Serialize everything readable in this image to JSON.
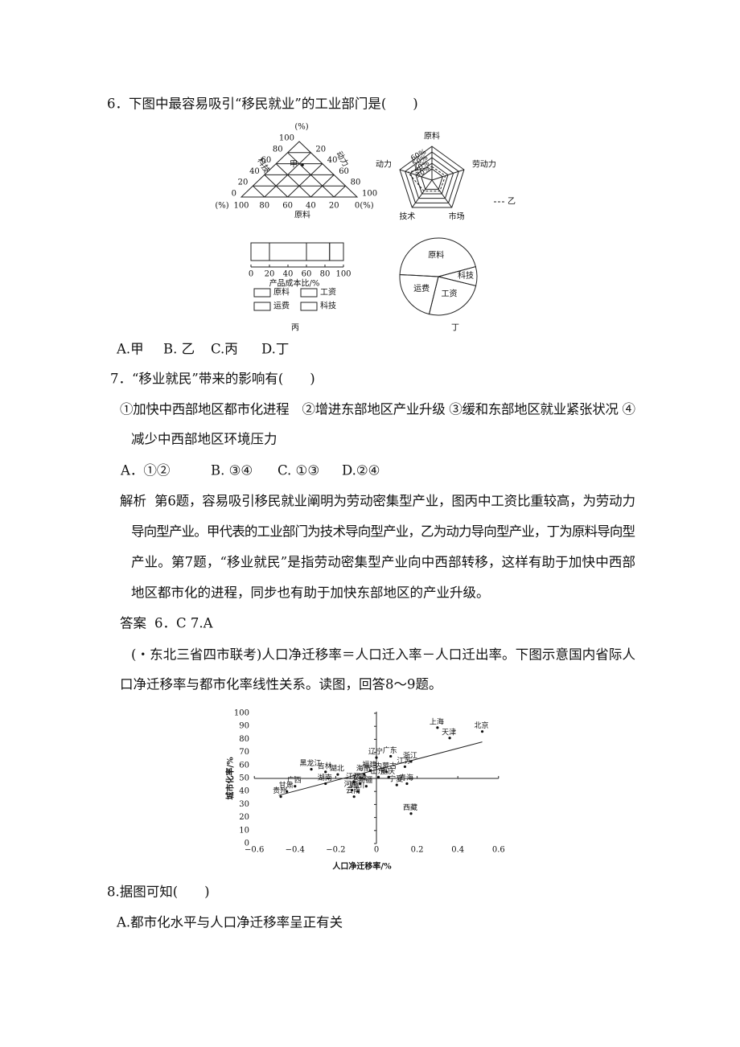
{
  "q6": {
    "stem": "6．下图中最容易吸引“移民就业”的工业部门是(　　)",
    "options": [
      "A.甲",
      "B. 乙",
      "C.丙",
      "D.丁"
    ]
  },
  "figures": {
    "triangle": {
      "unit": "(%)",
      "left_label": "科技",
      "right_label": "动力",
      "bottom_label": "原料",
      "point": "甲",
      "left_ticks": [
        "100",
        "80",
        "60",
        "40",
        "20",
        "0"
      ],
      "right_ticks": [
        "20",
        "40",
        "60",
        "80",
        "100"
      ],
      "bottom_ticks": [
        "100",
        "80",
        "60",
        "40",
        "20",
        "0"
      ]
    },
    "radar": {
      "axes": [
        "原料",
        "劳动力",
        "市场",
        "技术",
        "动力"
      ],
      "rings": [
        "60%",
        "50%",
        "40%",
        "30%"
      ],
      "legend": "乙"
    },
    "bar": {
      "caption": "丙",
      "axis_label": "产品成本比/%",
      "ticks": [
        0,
        20,
        40,
        60,
        80,
        100
      ],
      "segments": [
        {
          "name": "原料",
          "value": 20
        },
        {
          "name": "工资",
          "value": 40
        },
        {
          "name": "运费",
          "value": 25
        },
        {
          "name": "科技",
          "value": 15
        }
      ]
    },
    "pie": {
      "caption": "丁",
      "segments": [
        {
          "name": "原料",
          "value": 45
        },
        {
          "name": "科技",
          "value": 8
        },
        {
          "name": "工资",
          "value": 25
        },
        {
          "name": "运费",
          "value": 22
        }
      ]
    }
  },
  "q7": {
    "stem": "7．“移业就民”带来的影响有(　　)",
    "statements": [
      "①加快中西部地区都市化进程　②增进东部地区产业升级 ③缓和东部地区就业紧张状况 ④",
      "减少中西部地区环境压力"
    ],
    "options": [
      "A．①②",
      "B. ③④",
      "C. ①③",
      "D.②④"
    ]
  },
  "analysis": {
    "label": "解析",
    "lines": [
      "第6题，容易吸引移民就业阐明为劳动密集型产业，图丙中工资比重较高，为劳动力",
      "导向型产业。甲代表的工业部门为技术导向型产业，乙为动力导向型产业，丁为原料导向型",
      "产业。第7题，“移业就民”是指劳动密集型产业向中西部转移，这样有助于加快中西部",
      "地区都市化的进程，同步也有助于加快东部地区的产业升级。"
    ]
  },
  "answer": {
    "label": "答案",
    "text": "6．C 7.A"
  },
  "intro": [
    "(・东北三省四市联考)人口净迁移率＝人口迁入率－人口迁出率。下图示意国内省际人",
    "口净迁移率与都市化率线性关系。读图，回答8～9题。"
  ],
  "chart_data": {
    "type": "scatter",
    "x_label": "人口净迁移率/%",
    "y_label": "城市化率/%",
    "xlim": [
      -0.6,
      0.6
    ],
    "xticks": [
      {
        "value": -0.6,
        "label": "−0.6"
      },
      {
        "value": -0.4,
        "label": "−0.4"
      },
      {
        "value": -0.2,
        "label": "−0.2"
      },
      0,
      0.2,
      0.4,
      0.6
    ],
    "ylim": [
      0,
      100
    ],
    "yticks": [
      0,
      10,
      20,
      30,
      40,
      50,
      60,
      70,
      80,
      90,
      100
    ],
    "points": [
      {
        "name": "上海",
        "x": 0.3,
        "y": 89
      },
      {
        "name": "天津",
        "x": 0.36,
        "y": 81
      },
      {
        "name": "北京",
        "x": 0.52,
        "y": 86
      },
      {
        "name": "辽宁",
        "x": 0.0,
        "y": 66
      },
      {
        "name": "广东",
        "x": 0.07,
        "y": 67
      },
      {
        "name": "浙江",
        "x": 0.17,
        "y": 63
      },
      {
        "name": "江苏",
        "x": 0.14,
        "y": 59
      },
      {
        "name": "内蒙古",
        "x": 0.05,
        "y": 55
      },
      {
        "name": "福建",
        "x": -0.03,
        "y": 56
      },
      {
        "name": "黑龙江",
        "x": -0.32,
        "y": 57
      },
      {
        "name": "吉林",
        "x": -0.25,
        "y": 55
      },
      {
        "name": "湖北",
        "x": -0.19,
        "y": 53
      },
      {
        "name": "海南",
        "x": -0.06,
        "y": 53
      },
      {
        "name": "山东",
        "x": 0.01,
        "y": 51
      },
      {
        "name": "重庆",
        "x": 0.06,
        "y": 51
      },
      {
        "name": "宁夏",
        "x": 0.1,
        "y": 45
      },
      {
        "name": "青海",
        "x": 0.15,
        "y": 46
      },
      {
        "name": "西藏",
        "x": 0.17,
        "y": 23
      },
      {
        "name": "广西",
        "x": -0.4,
        "y": 44
      },
      {
        "name": "湖南",
        "x": -0.25,
        "y": 46
      },
      {
        "name": "江西",
        "x": -0.11,
        "y": 47
      },
      {
        "name": "安徽",
        "x": -0.08,
        "y": 46
      },
      {
        "name": "河南",
        "x": -0.12,
        "y": 41
      },
      {
        "name": "四川",
        "x": -0.09,
        "y": 40
      },
      {
        "name": "云南",
        "x": -0.11,
        "y": 36
      },
      {
        "name": "新疆",
        "x": -0.05,
        "y": 44
      },
      {
        "name": "甘肃",
        "x": -0.44,
        "y": 40
      },
      {
        "name": "贵州",
        "x": -0.47,
        "y": 36
      }
    ],
    "trend_line": {
      "x": [
        -0.48,
        0.52
      ],
      "y": [
        37,
        78
      ]
    }
  },
  "q8": {
    "stem": "8.据图可知(　　)",
    "option_a": "A.都市化水平与人口净迁移率呈正有关"
  }
}
